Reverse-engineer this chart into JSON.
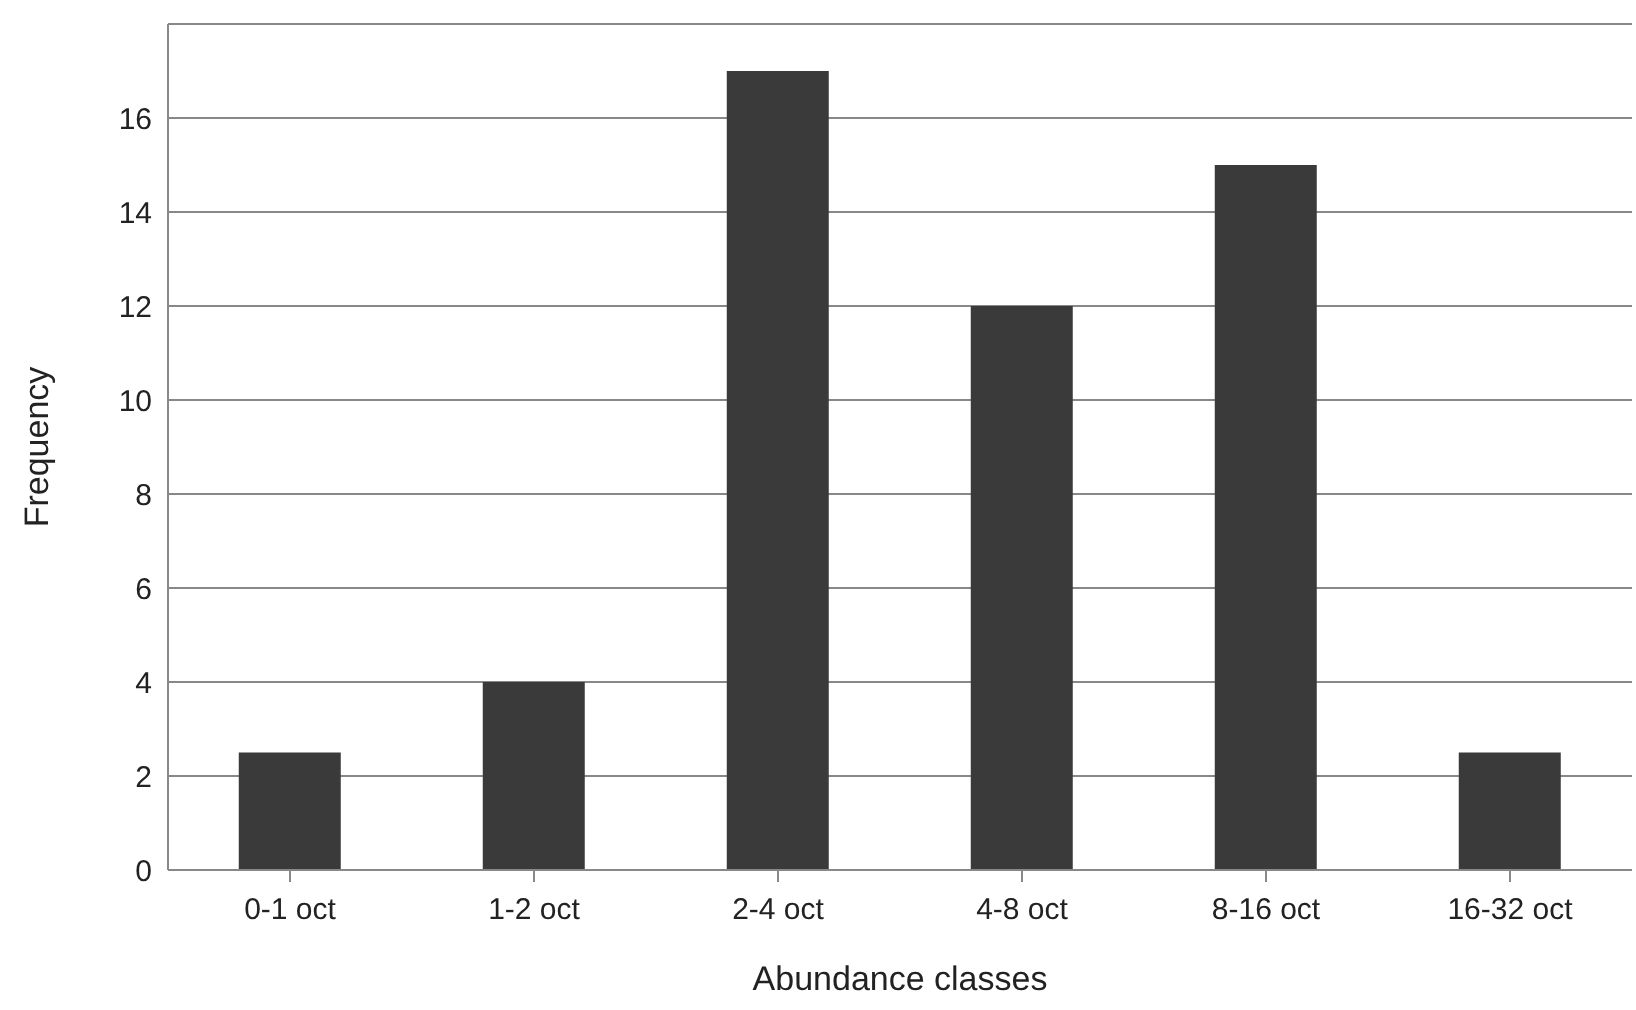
{
  "chart_data": {
    "type": "bar",
    "xlabel": "Abundance classes",
    "ylabel": "Frequency",
    "categories": [
      "0-1 oct",
      "1-2 oct",
      "2-4 oct",
      "4-8 oct",
      "8-16 oct",
      "16-32 oct"
    ],
    "values": [
      2.5,
      4,
      17,
      12,
      15,
      2.5
    ],
    "color": "#3a3a3a",
    "ylim": [
      0,
      18
    ],
    "yticks": [
      0,
      2,
      4,
      6,
      8,
      10,
      12,
      14,
      16
    ],
    "grid": "y"
  }
}
